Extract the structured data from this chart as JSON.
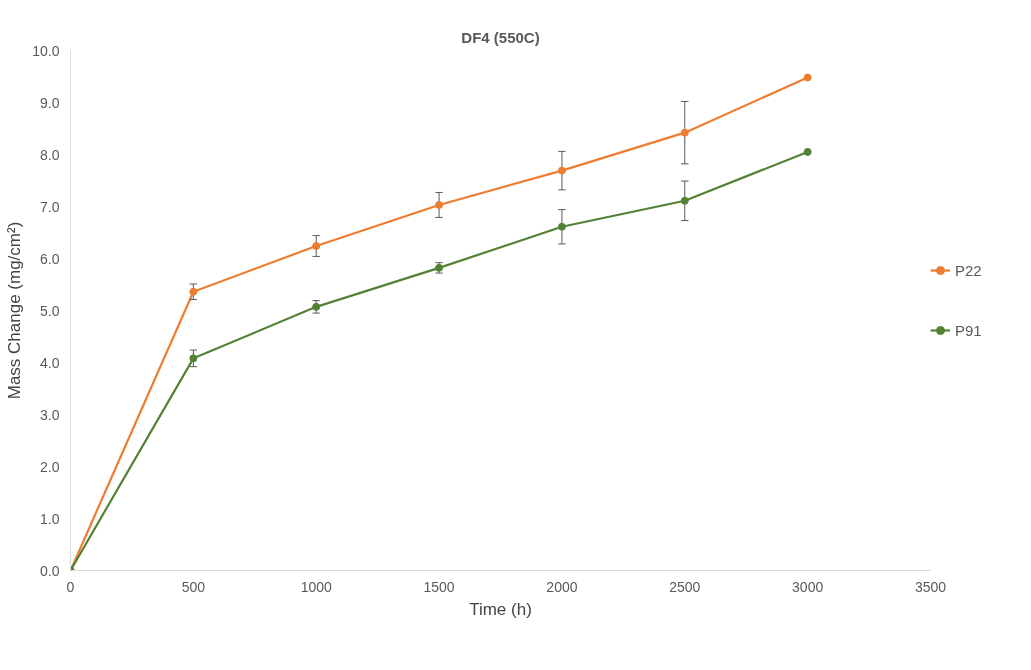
{
  "chart_data": {
    "type": "line",
    "title": "DF4 (550C)",
    "xlabel": "Time (h)",
    "ylabel": "Mass Change (mg/cm²)",
    "x": [
      0,
      500,
      1000,
      1500,
      2000,
      2500,
      3000
    ],
    "series": [
      {
        "name": "P22",
        "color": "#ed7d31",
        "values": [
          0,
          5.36,
          6.24,
          7.03,
          7.69,
          8.42,
          9.48
        ],
        "errors": [
          null,
          0.15,
          0.2,
          0.24,
          0.37,
          0.6,
          null
        ]
      },
      {
        "name": "P91",
        "color": "#548235",
        "values": [
          0,
          4.08,
          5.07,
          5.82,
          6.61,
          7.11,
          8.05
        ],
        "errors": [
          null,
          0.16,
          0.12,
          0.1,
          0.33,
          0.38,
          null
        ]
      }
    ],
    "xlim": [
      0,
      3500
    ],
    "xticks": [
      0,
      500,
      1000,
      1500,
      2000,
      2500,
      3000,
      3500
    ],
    "ylim": [
      0,
      10
    ],
    "yticks": [
      {
        "value": 0,
        "label": "0.0"
      },
      {
        "value": 1,
        "label": "1.0"
      },
      {
        "value": 2,
        "label": "2.0"
      },
      {
        "value": 3,
        "label": "3.0"
      },
      {
        "value": 4,
        "label": "4.0"
      },
      {
        "value": 5,
        "label": "5.0"
      },
      {
        "value": 6,
        "label": "6.0"
      },
      {
        "value": 7,
        "label": "7.0"
      },
      {
        "value": 8,
        "label": "8.0"
      },
      {
        "value": 9,
        "label": "9.0"
      },
      {
        "value": 10,
        "label": "10.0"
      }
    ],
    "grid": false,
    "legend": "right",
    "marker": "circle",
    "line_style": "solid"
  }
}
